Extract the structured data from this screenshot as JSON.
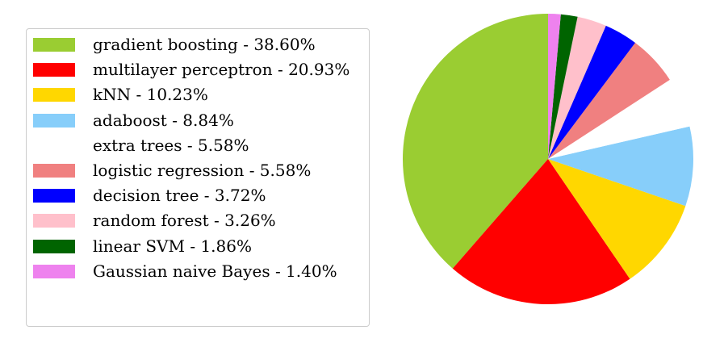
{
  "chart_data": {
    "type": "pie",
    "title": "",
    "slices": [
      {
        "label": "gradient boosting - 38.60%",
        "value": 38.6,
        "color": "#9acd32"
      },
      {
        "label": "multilayer perceptron - 20.93%",
        "value": 20.93,
        "color": "#ff0000"
      },
      {
        "label": "kNN - 10.23%",
        "value": 10.23,
        "color": "#ffd700"
      },
      {
        "label": "adaboost - 8.84%",
        "value": 8.84,
        "color": "#87cefa"
      },
      {
        "label": "extra trees - 5.58%",
        "value": 5.58,
        "color": "#ffffff"
      },
      {
        "label": "logistic regression - 5.58%",
        "value": 5.58,
        "color": "#f08080"
      },
      {
        "label": "decision tree - 3.72%",
        "value": 3.72,
        "color": "#0000ff"
      },
      {
        "label": "random forest - 3.26%",
        "value": 3.26,
        "color": "#ffc0cb"
      },
      {
        "label": "linear SVM - 1.86%",
        "value": 1.86,
        "color": "#006400"
      },
      {
        "label": "Gaussian naive Bayes - 1.40%",
        "value": 1.4,
        "color": "#ee82ee"
      }
    ],
    "start_angle_deg": 90,
    "direction": "counterclockwise",
    "legend_position": "left"
  }
}
